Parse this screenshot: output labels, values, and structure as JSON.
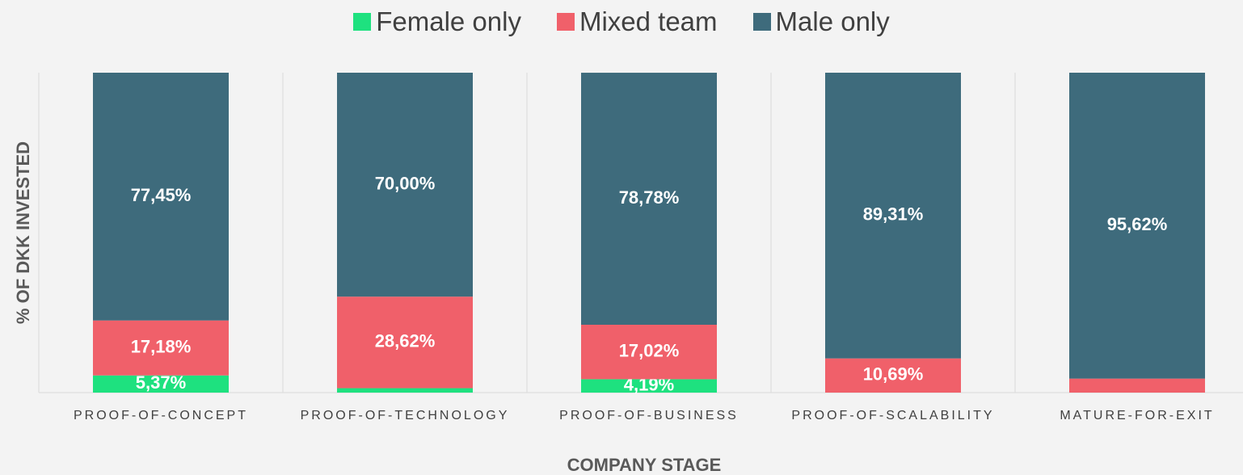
{
  "chart_data": {
    "type": "stacked_bar",
    "categories": [
      "PROOF-OF-CONCEPT",
      "PROOF-OF-TECHNOLOGY",
      "PROOF-OF-BUSINESS",
      "PROOF-OF-SCALABILITY",
      "MATURE-FOR-EXIT"
    ],
    "series": [
      {
        "name": "Female only",
        "color": "#1ee17f",
        "values": [
          5.37,
          1.38,
          4.19,
          0,
          0
        ],
        "value_labels": [
          "5,37%",
          null,
          "4,19%",
          null,
          null
        ]
      },
      {
        "name": "Mixed team",
        "color": "#f0606a",
        "values": [
          17.18,
          28.62,
          17.02,
          10.69,
          4.38
        ],
        "value_labels": [
          "17,18%",
          "28,62%",
          "17,02%",
          "10,69%",
          null
        ]
      },
      {
        "name": "Male only",
        "color": "#3e6b7c",
        "values": [
          77.45,
          70.0,
          78.78,
          89.31,
          95.62
        ],
        "value_labels": [
          "77,45%",
          "70,00%",
          "78,78%",
          "89,31%",
          "95,62%"
        ]
      }
    ],
    "ylim": [
      0,
      100
    ],
    "y_label": "% OF DKK INVESTED",
    "x_label": "COMPANY STAGE",
    "legend": "top"
  }
}
